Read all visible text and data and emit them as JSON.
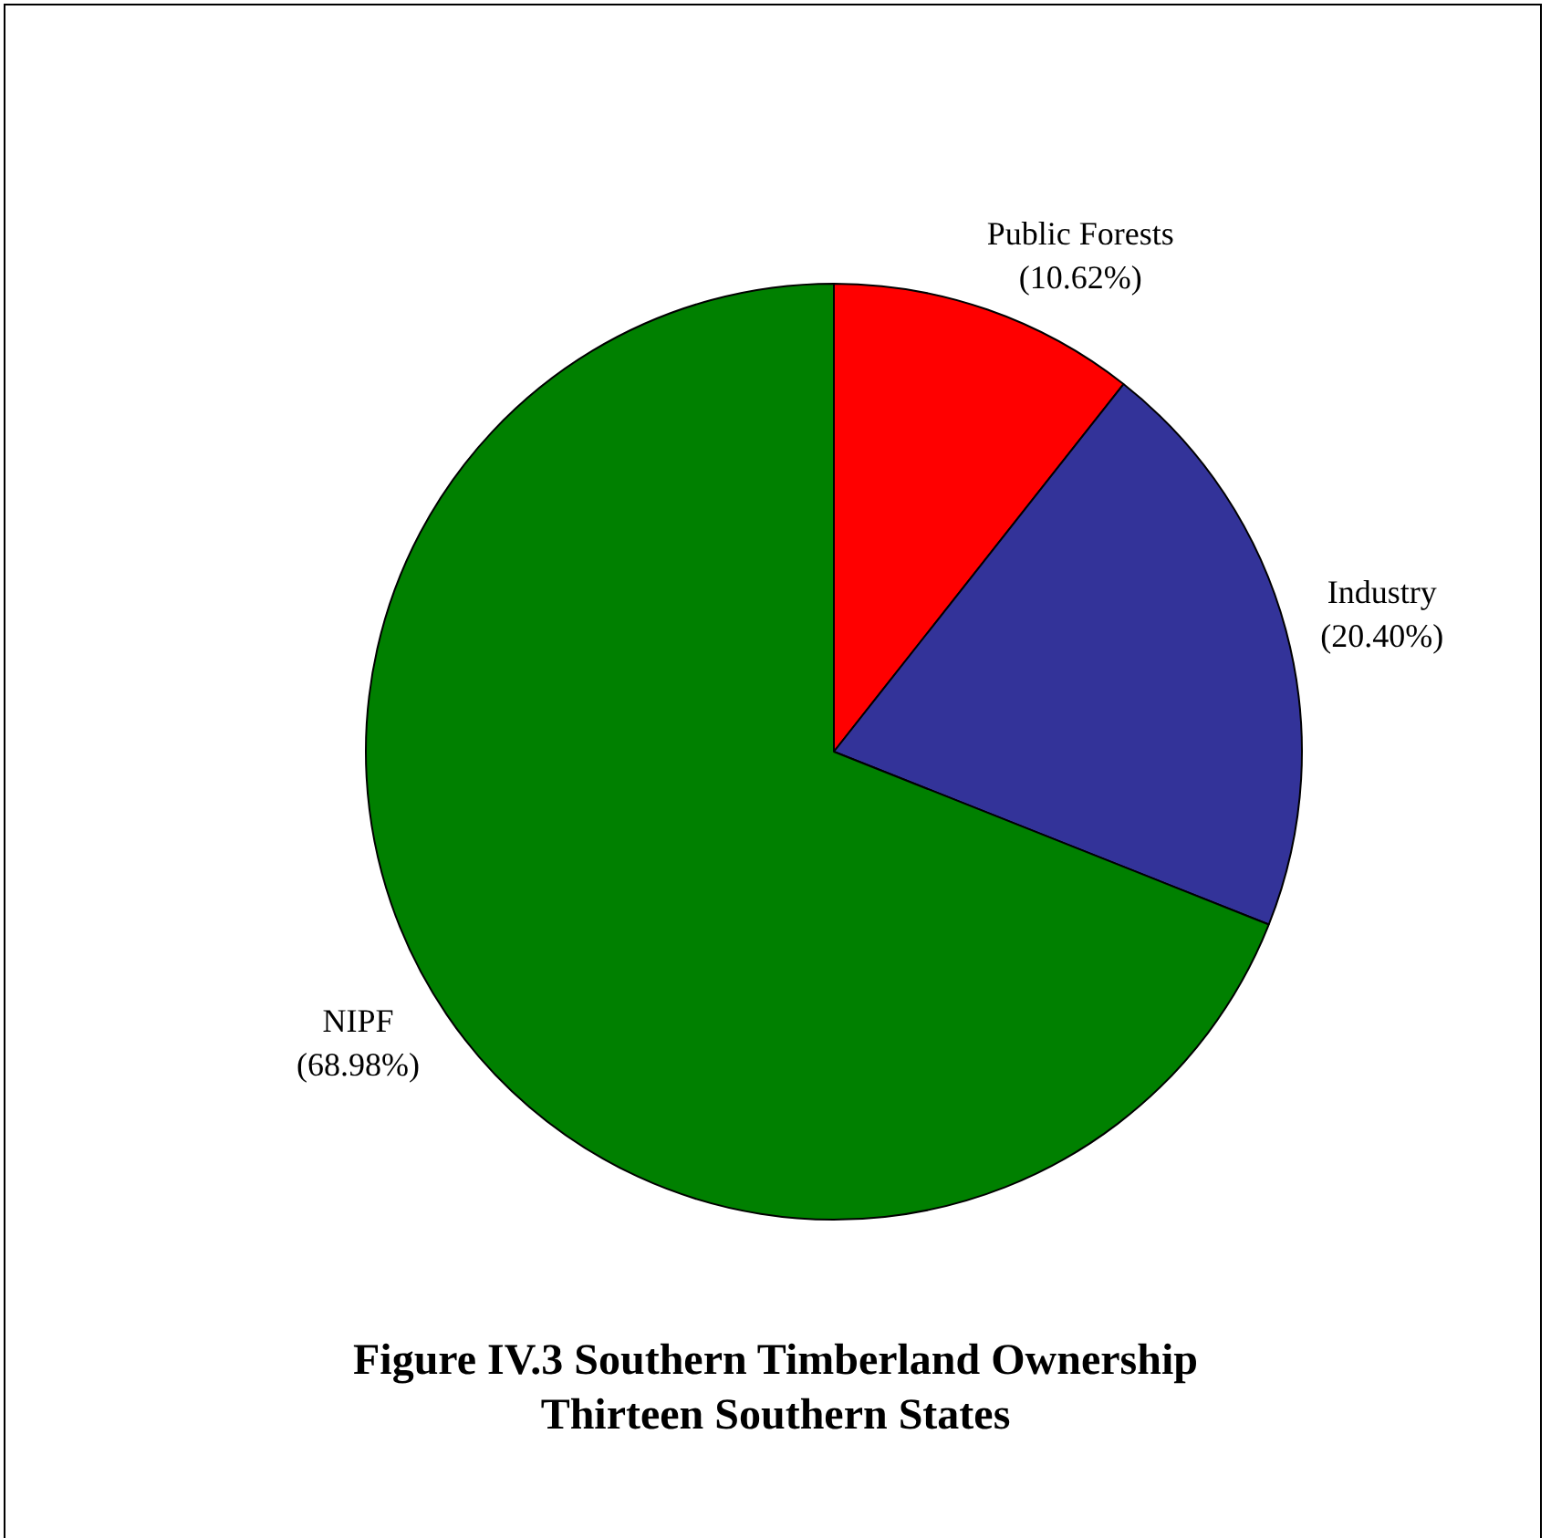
{
  "chart_data": {
    "type": "pie",
    "title": "Figure IV.3 Southern Timberland Ownership",
    "subtitle": "Thirteen Southern States",
    "categories": [
      "Public Forests",
      "Industry",
      "NIPF"
    ],
    "values": [
      10.62,
      20.4,
      68.98
    ],
    "colors": [
      "#ff0000",
      "#333399",
      "#008000"
    ],
    "value_labels": [
      "(10.62%)",
      "(20.40%)",
      "(68.98%)"
    ],
    "legend": false
  }
}
